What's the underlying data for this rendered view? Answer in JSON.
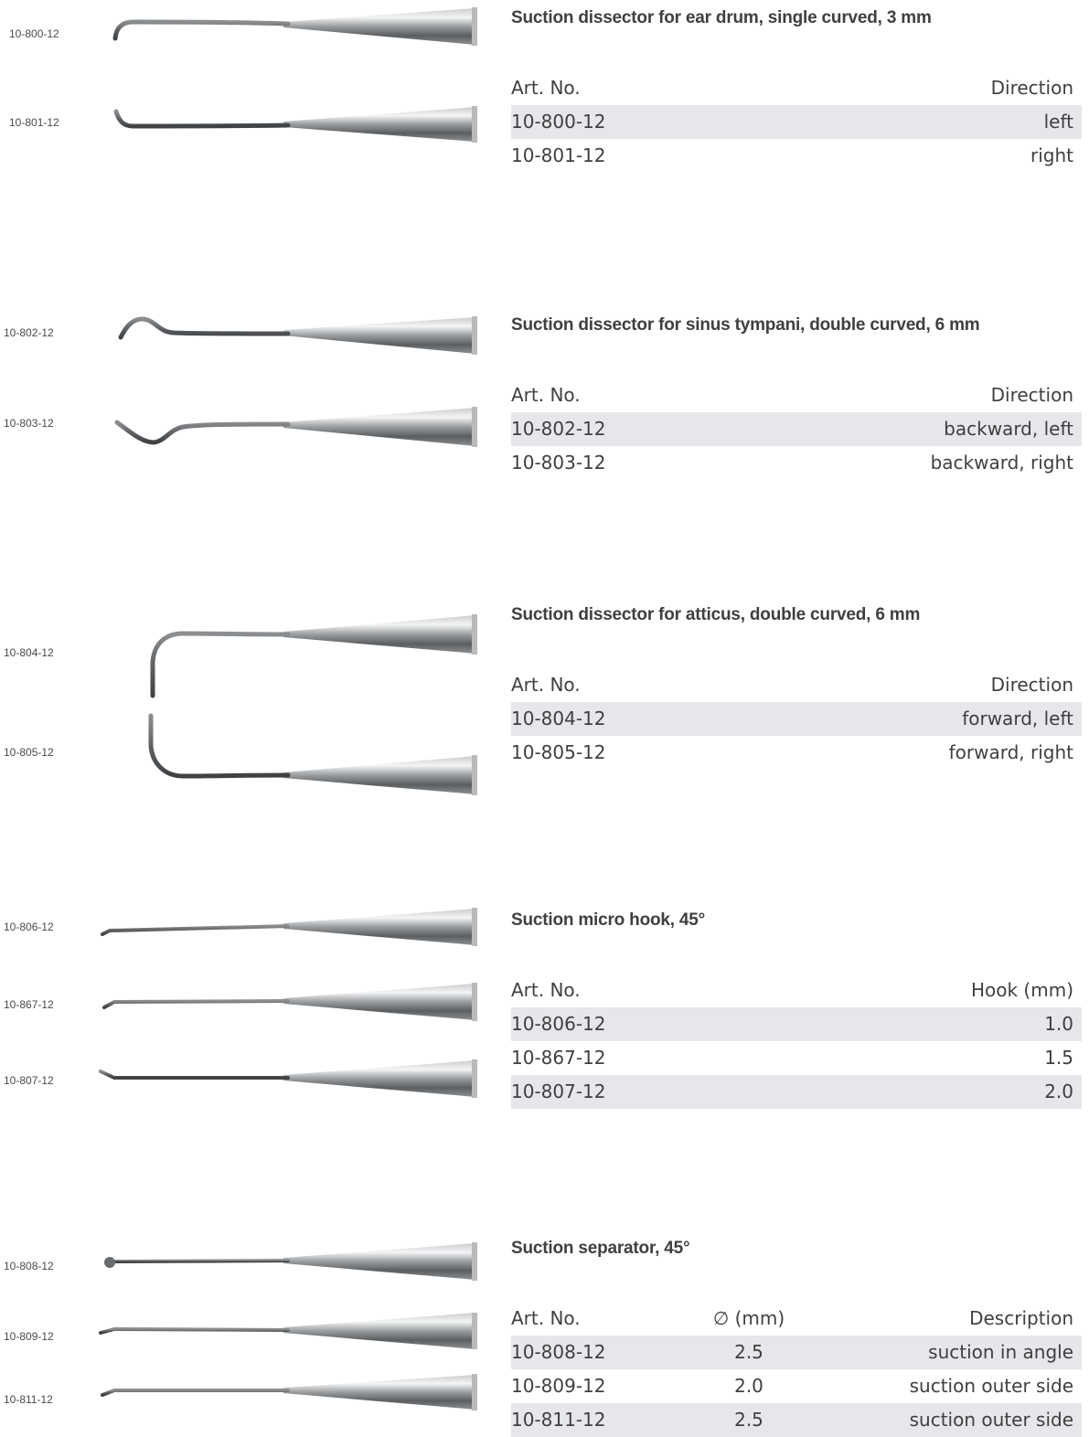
{
  "sections": [
    {
      "title": "Suction dissector for ear drum, single curved, 3 mm",
      "instrument_labels": [
        "10-800-12",
        "10-801-12"
      ],
      "headers": [
        "Art. No.",
        "Direction"
      ],
      "rows": [
        [
          "10-800-12",
          "left"
        ],
        [
          "10-801-12",
          "right"
        ]
      ]
    },
    {
      "title": "Suction dissector for sinus tympani, double curved, 6 mm",
      "instrument_labels": [
        "10-802-12",
        "10-803-12"
      ],
      "headers": [
        "Art. No.",
        "Direction"
      ],
      "rows": [
        [
          "10-802-12",
          "backward, left"
        ],
        [
          "10-803-12",
          "backward, right"
        ]
      ]
    },
    {
      "title": "Suction dissector for atticus, double curved, 6 mm",
      "instrument_labels": [
        "10-804-12",
        "10-805-12"
      ],
      "headers": [
        "Art. No.",
        "Direction"
      ],
      "rows": [
        [
          "10-804-12",
          "forward, left"
        ],
        [
          "10-805-12",
          "forward, right"
        ]
      ]
    },
    {
      "title": "Suction micro hook, 45°",
      "instrument_labels": [
        "10-806-12",
        "10-867-12",
        "10-807-12"
      ],
      "headers": [
        "Art. No.",
        "Hook (mm)"
      ],
      "rows": [
        [
          "10-806-12",
          "1.0"
        ],
        [
          "10-867-12",
          "1.5"
        ],
        [
          "10-807-12",
          "2.0"
        ]
      ]
    },
    {
      "title": "Suction separator, 45°",
      "instrument_labels": [
        "10-808-12",
        "10-809-12",
        "10-811-12"
      ],
      "headers": [
        "Art. No.",
        "∅ (mm)",
        "Description"
      ],
      "rows": [
        [
          "10-808-12",
          "2.5",
          "suction in angle"
        ],
        [
          "10-809-12",
          "2.0",
          "suction outer side"
        ],
        [
          "10-811-12",
          "2.5",
          "suction outer side"
        ]
      ]
    }
  ]
}
